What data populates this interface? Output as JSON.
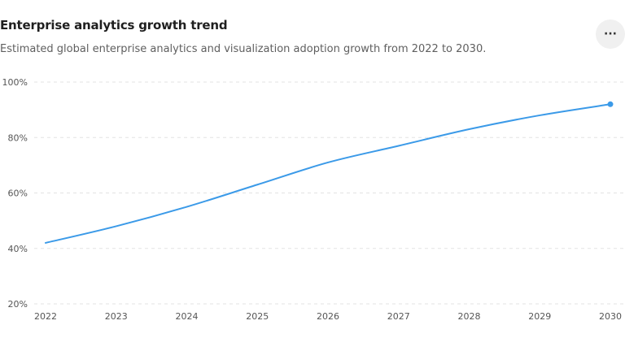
{
  "header": {
    "title": "Enterprise analytics growth trend",
    "subtitle": "Estimated global enterprise analytics and visualization adoption growth from 2022 to 2030.",
    "more_label": "···"
  },
  "colors": {
    "line": "#3b9ae8",
    "grid": "#e3e3e3"
  },
  "chart_data": {
    "type": "line",
    "title": "Enterprise analytics growth trend",
    "subtitle": "Estimated global enterprise analytics and visualization adoption growth from 2022 to 2030.",
    "x": [
      "2022",
      "2023",
      "2024",
      "2025",
      "2026",
      "2027",
      "2028",
      "2029",
      "2030"
    ],
    "series": [
      {
        "values": [
          42,
          48,
          55,
          63,
          71,
          77,
          83,
          88,
          92
        ]
      }
    ],
    "yticks": [
      "20%",
      "40%",
      "60%",
      "80%",
      "100%"
    ],
    "ylim": [
      20,
      100
    ],
    "grid": true,
    "end_marker": true
  }
}
